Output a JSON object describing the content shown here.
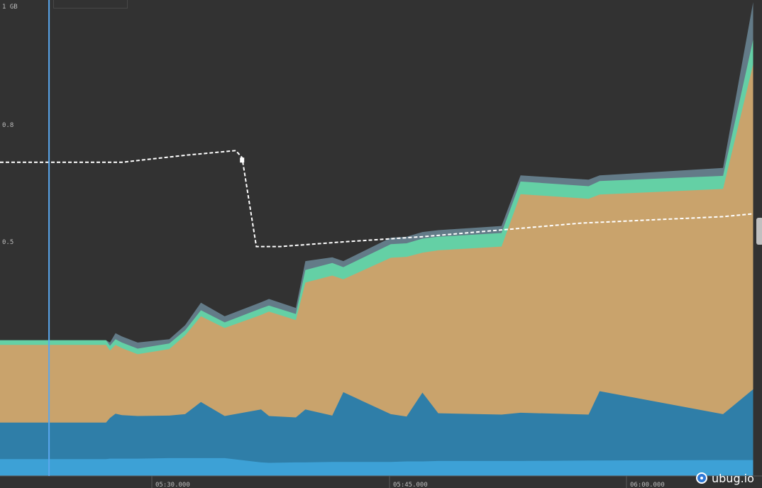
{
  "chart_data": {
    "type": "area",
    "title": "",
    "y_ticks": [
      "1 GB",
      "0.8",
      "0.5"
    ],
    "x_ticks": [
      "05:30.000",
      "05:45.000",
      "06:00.000"
    ],
    "x_range": [
      "05:23.300",
      "06:10.900"
    ],
    "y_unit": "GB",
    "stacked": true,
    "colors": {
      "bottom": "#3da1d6",
      "blue": "#2f7ea8",
      "tan": "#c9a36c",
      "green": "#64d0a5",
      "slate": "#637b88",
      "line": "#ffffff",
      "cursor": "#5aa7ee",
      "background": "#323232"
    },
    "cursor_time": "05:26.400",
    "tops": {
      "x": [
        "05:23.300",
        "05:27.000",
        "05:30.000",
        "05:30.250",
        "05:30.600",
        "05:31.000",
        "05:32.000",
        "05:34.000",
        "05:35.000",
        "05:36.000",
        "05:37.500",
        "05:39.800",
        "05:40.300",
        "05:42.000",
        "05:42.600",
        "05:44.300",
        "05:45.000",
        "05:48.000",
        "05:49.000",
        "05:50.000",
        "05:51.000",
        "05:55.000",
        "05:56.200",
        "06:00.500",
        "06:01.200",
        "06:09.000",
        "06:10.900"
      ],
      "bottom": [
        0.036,
        0.036,
        0.036,
        0.037,
        0.037,
        0.037,
        0.037,
        0.038,
        0.038,
        0.038,
        0.038,
        0.029,
        0.028,
        0.029,
        0.029,
        0.03,
        0.03,
        0.03,
        0.031,
        0.031,
        0.032,
        0.032,
        0.032,
        0.033,
        0.033,
        0.034,
        0.034
      ],
      "blue": [
        0.114,
        0.114,
        0.114,
        0.124,
        0.133,
        0.13,
        0.128,
        0.129,
        0.132,
        0.158,
        0.128,
        0.142,
        0.128,
        0.125,
        0.142,
        0.129,
        0.179,
        0.132,
        0.127,
        0.178,
        0.134,
        0.131,
        0.135,
        0.131,
        0.181,
        0.132,
        0.185
      ],
      "tan": [
        0.28,
        0.28,
        0.28,
        0.268,
        0.28,
        0.273,
        0.26,
        0.271,
        0.3,
        0.341,
        0.316,
        0.344,
        0.351,
        0.333,
        0.413,
        0.428,
        0.42,
        0.466,
        0.468,
        0.477,
        0.482,
        0.49,
        0.602,
        0.592,
        0.601,
        0.613,
        0.879
      ],
      "green": [
        0.29,
        0.29,
        0.29,
        0.278,
        0.292,
        0.285,
        0.272,
        0.283,
        0.311,
        0.354,
        0.328,
        0.358,
        0.364,
        0.346,
        0.44,
        0.455,
        0.446,
        0.495,
        0.497,
        0.507,
        0.511,
        0.519,
        0.629,
        0.619,
        0.63,
        0.641,
        0.932
      ],
      "slate": [
        0.29,
        0.29,
        0.29,
        0.285,
        0.305,
        0.298,
        0.285,
        0.292,
        0.322,
        0.37,
        0.341,
        0.371,
        0.378,
        0.359,
        0.459,
        0.467,
        0.459,
        0.509,
        0.511,
        0.521,
        0.525,
        0.534,
        0.642,
        0.633,
        0.642,
        0.658,
        1.012
      ]
    },
    "dashed_line": {
      "x": [
        "05:23.300",
        "05:31.000",
        "05:35.000",
        "05:38.200",
        "05:38.600",
        "05:39.500",
        "05:41.000",
        "05:45.000",
        "05:50.000",
        "06:00.000",
        "06:09.000",
        "06:10.900"
      ],
      "y": [
        0.67,
        0.67,
        0.685,
        0.695,
        0.68,
        0.49,
        0.49,
        0.5,
        0.511,
        0.54,
        0.554,
        0.56
      ]
    }
  },
  "watermark": {
    "text": "ubug.io",
    "icon": "ubug-logo-icon"
  }
}
